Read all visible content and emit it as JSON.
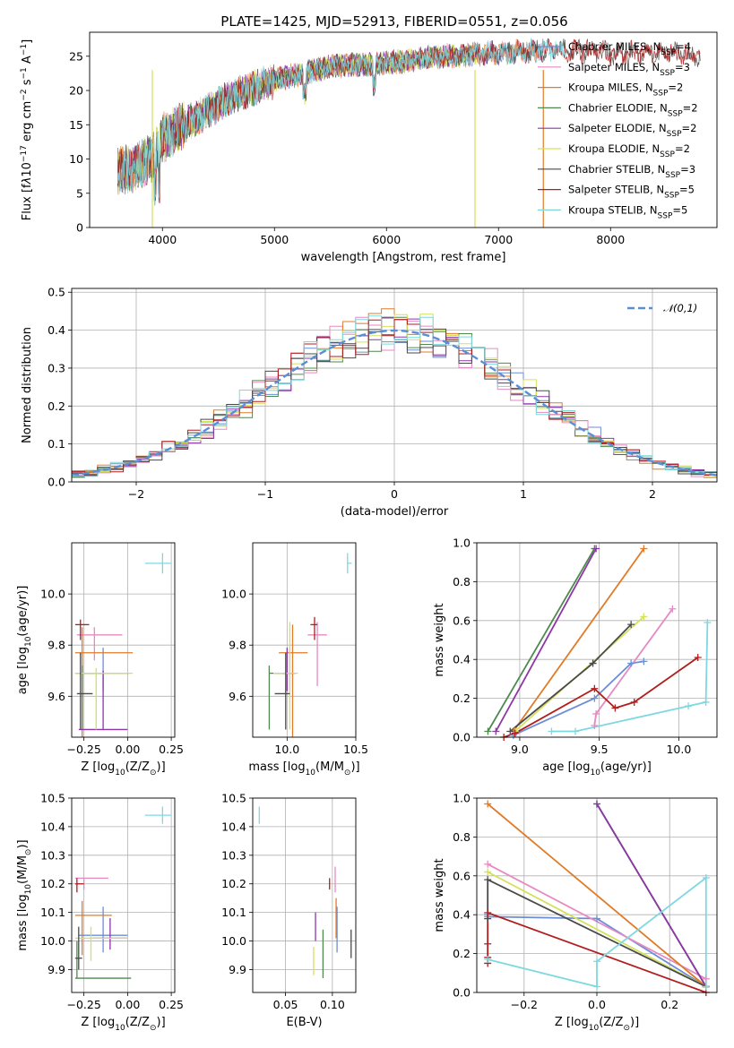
{
  "figure_title": "PLATE=1425, MJD=52913, FIBERID=0551, z=0.056",
  "chart_data": [
    {
      "id": "spectrum",
      "type": "line",
      "xlabel": "wavelength [Angstrom, rest frame]",
      "ylabel_parts": [
        "Flux [f",
        "λ",
        "10",
        "−17",
        " erg cm",
        "−2",
        " s",
        "−1",
        " A",
        "−1",
        "]"
      ],
      "xlim": [
        3350,
        8950
      ],
      "ylim": [
        0,
        28.5
      ],
      "xticks": [
        4000,
        5000,
        6000,
        7000,
        8000
      ],
      "yticks": [
        0,
        5,
        10,
        15,
        20,
        25
      ],
      "grid": false,
      "legend_position": "right",
      "continuum_x": [
        3600,
        3700,
        3900,
        4000,
        4300,
        4600,
        5000,
        5500,
        6000,
        6500,
        7000,
        7500,
        8000,
        8500,
        8800
      ],
      "continuum_y": [
        8,
        8.5,
        10,
        13,
        16,
        19,
        21.5,
        23.5,
        24,
        25,
        25.5,
        26,
        25.5,
        25.5,
        25
      ],
      "series": [
        {
          "legend_parts": [
            "Chabrier MILES, N",
            "SSP",
            "=4"
          ],
          "color": "#6b8ed6",
          "xmax": 7400
        },
        {
          "legend_parts": [
            "Salpeter MILES, N",
            "SSP",
            "=3"
          ],
          "color": "#e68ac3",
          "xmax": 7400
        },
        {
          "legend_parts": [
            "Kroupa MILES, N",
            "SSP",
            "=2"
          ],
          "color": "#e07b28",
          "xmax": 7400
        },
        {
          "legend_parts": [
            "Chabrier ELODIE, N",
            "SSP",
            "=2"
          ],
          "color": "#4f8a4f",
          "xmax": 6800
        },
        {
          "legend_parts": [
            "Salpeter ELODIE, N",
            "SSP",
            "=2"
          ],
          "color": "#8e35a8",
          "xmax": 6800
        },
        {
          "legend_parts": [
            "Kroupa ELODIE, N",
            "SSP",
            "=2"
          ],
          "color": "#d4e15a",
          "xmax": 6800
        },
        {
          "legend_parts": [
            "Chabrier STELIB, N",
            "SSP",
            "=3"
          ],
          "color": "#4a4a4a",
          "xmax": 8800
        },
        {
          "legend_parts": [
            "Salpeter STELIB, N",
            "SSP",
            "=5"
          ],
          "color": "#b01e1e",
          "xmax": 8800
        },
        {
          "legend_parts": [
            "Kroupa STELIB, N",
            "SSP",
            "=5"
          ],
          "color": "#7dd8e0",
          "xmax": 7600
        }
      ]
    },
    {
      "id": "residuals",
      "type": "histogram",
      "xlabel": "(data-model)/error",
      "ylabel": "Normed distribution",
      "xlim": [
        -2.5,
        2.5
      ],
      "ylim": [
        0,
        0.51
      ],
      "xticks": [
        -2,
        -1,
        0,
        1,
        2
      ],
      "xticklabels": [
        "−2",
        "−1",
        "0",
        "1",
        "2"
      ],
      "yticks": [
        0.0,
        0.1,
        0.2,
        0.3,
        0.4,
        0.5
      ],
      "yticklabels": [
        "0.0",
        "0.1",
        "0.2",
        "0.3",
        "0.4",
        "0.5"
      ],
      "grid": true,
      "bin_width": 0.1,
      "legend_label": "𝒩(0,1)",
      "legend_position": "top-right",
      "normal_curve_color": "#5a8fd6",
      "hist_colors": [
        "#6b8ed6",
        "#e68ac3",
        "#e07b28",
        "#4f8a4f",
        "#8e35a8",
        "#d4e15a",
        "#4a4a4a",
        "#b01e1e",
        "#7dd8e0"
      ]
    },
    {
      "id": "age_vs_Z",
      "type": "errorbar",
      "xlabel_parts": [
        "Z [log",
        "10",
        "(Z/Z",
        "⊙",
        ")]"
      ],
      "ylabel_parts": [
        "age  [log",
        "10",
        "(age/yr)]"
      ],
      "xlim": [
        -0.32,
        0.27
      ],
      "ylim": [
        9.44,
        10.2
      ],
      "xticks": [
        -0.25,
        0.0,
        0.25
      ],
      "xticklabels": [
        "−0.25",
        "0.00",
        "0.25"
      ],
      "yticks": [
        9.6,
        9.8,
        10.0
      ],
      "yticklabels": [
        "9.6",
        "9.8",
        "10.0"
      ],
      "grid": true,
      "points": [
        {
          "color": "#6b8ed6",
          "x": -0.14,
          "xerr": [
            0.14,
            0.0
          ],
          "y": 9.69,
          "yerr": [
            0.07,
            0.1
          ]
        },
        {
          "color": "#e68ac3",
          "x": -0.19,
          "xerr": [
            0.1,
            0.16
          ],
          "y": 9.84,
          "yerr": [
            0.1,
            0.03
          ]
        },
        {
          "color": "#e07b28",
          "x": -0.26,
          "xerr": [
            0.04,
            0.29
          ],
          "y": 9.77,
          "yerr": [
            0.33,
            0.1
          ]
        },
        {
          "color": "#4f8a4f",
          "x": -0.26,
          "xerr": [
            0.04,
            0.27
          ],
          "y": 9.69,
          "yerr": [
            0.22,
            0.03
          ]
        },
        {
          "color": "#8e35a8",
          "x": -0.14,
          "xerr": [
            0.14,
            0.14
          ],
          "y": 9.47,
          "yerr": [
            0.0,
            0.23
          ]
        },
        {
          "color": "#d4e15a",
          "x": -0.18,
          "xerr": [
            0.12,
            0.21
          ],
          "y": 9.69,
          "yerr": [
            0.22,
            0.02
          ]
        },
        {
          "color": "#4a4a4a",
          "x": -0.27,
          "xerr": [
            0.02,
            0.07
          ],
          "y": 9.61,
          "yerr": [
            0.14,
            0.16
          ]
        },
        {
          "color": "#b01e1e",
          "x": -0.27,
          "xerr": [
            0.03,
            0.05
          ],
          "y": 9.88,
          "yerr": [
            0.06,
            0.02
          ]
        },
        {
          "color": "#7dd8e0",
          "x": 0.2,
          "xerr": [
            0.1,
            0.05
          ],
          "y": 10.12,
          "yerr": [
            0.04,
            0.04
          ]
        }
      ]
    },
    {
      "id": "age_vs_mass",
      "type": "errorbar",
      "xlabel_parts": [
        "mass [log",
        "10",
        "(M/M",
        "⊙",
        ")]"
      ],
      "xlim": [
        9.75,
        10.5
      ],
      "ylim": [
        9.44,
        10.2
      ],
      "xticks": [
        10.0,
        10.5
      ],
      "xticklabels": [
        "10.0",
        "10.5"
      ],
      "yticks": [
        9.6,
        9.8,
        10.0
      ],
      "yticklabels": [
        "9.6",
        "9.8",
        "10.0"
      ],
      "grid": true,
      "points": [
        {
          "color": "#6b8ed6",
          "x": 10.02,
          "xerr": [
            0.1,
            0.04
          ],
          "y": 9.69,
          "yerr": [
            0.07,
            0.1
          ]
        },
        {
          "color": "#e68ac3",
          "x": 10.22,
          "xerr": [
            0.07,
            0.07
          ],
          "y": 9.84,
          "yerr": [
            0.2,
            0.05
          ]
        },
        {
          "color": "#e07b28",
          "x": 10.04,
          "xerr": [
            0.1,
            0.11
          ],
          "y": 9.77,
          "yerr": [
            0.33,
            0.11
          ]
        },
        {
          "color": "#4f8a4f",
          "x": 9.87,
          "xerr": [
            0.0,
            0.12
          ],
          "y": 9.69,
          "yerr": [
            0.22,
            0.03
          ]
        },
        {
          "color": "#8e35a8",
          "x": 10.0,
          "xerr": [
            0.03,
            0.06
          ],
          "y": 9.69,
          "yerr": [
            0.07,
            0.1
          ]
        },
        {
          "color": "#d4e15a",
          "x": 10.02,
          "xerr": [
            0.12,
            0.06
          ],
          "y": 9.69,
          "yerr": [
            0.22,
            0.2
          ]
        },
        {
          "color": "#4a4a4a",
          "x": 9.99,
          "xerr": [
            0.08,
            0.03
          ],
          "y": 9.61,
          "yerr": [
            0.14,
            0.16
          ]
        },
        {
          "color": "#b01e1e",
          "x": 10.2,
          "xerr": [
            0.03,
            0.02
          ],
          "y": 9.88,
          "yerr": [
            0.06,
            0.03
          ]
        },
        {
          "color": "#7dd8e0",
          "x": 10.44,
          "xerr": [
            0.0,
            0.03
          ],
          "y": 10.12,
          "yerr": [
            0.04,
            0.04
          ]
        }
      ]
    },
    {
      "id": "massweight_vs_age",
      "type": "line",
      "xlabel_parts": [
        "age  [log",
        "10",
        "(age/yr)]"
      ],
      "ylabel": "mass weight",
      "xlim": [
        8.73,
        10.24
      ],
      "ylim": [
        0,
        1.0
      ],
      "xticks": [
        9.0,
        9.5,
        10.0
      ],
      "xticklabels": [
        "9.0",
        "9.5",
        "10.0"
      ],
      "yticks": [
        0.0,
        0.2,
        0.4,
        0.6,
        0.8,
        1.0
      ],
      "yticklabels": [
        "0.0",
        "0.2",
        "0.4",
        "0.6",
        "0.8",
        "1.0"
      ],
      "grid": true,
      "series": [
        {
          "color": "#6b8ed6",
          "x": [
            8.96,
            9.47,
            9.7,
            9.78
          ],
          "y": [
            0.01,
            0.2,
            0.38,
            0.39
          ]
        },
        {
          "color": "#e68ac3",
          "x": [
            9.47,
            9.48,
            9.96
          ],
          "y": [
            0.06,
            0.12,
            0.66
          ]
        },
        {
          "color": "#e07b28",
          "x": [
            8.96,
            9.78
          ],
          "y": [
            0.03,
            0.97
          ]
        },
        {
          "color": "#4f8a4f",
          "x": [
            8.8,
            9.47
          ],
          "y": [
            0.03,
            0.97
          ]
        },
        {
          "color": "#8e35a8",
          "x": [
            8.85,
            9.48
          ],
          "y": [
            0.03,
            0.97
          ]
        },
        {
          "color": "#d4e15a",
          "x": [
            8.97,
            9.78
          ],
          "y": [
            0.03,
            0.62
          ]
        },
        {
          "color": "#4a4a4a",
          "x": [
            8.94,
            9.46,
            9.7
          ],
          "y": [
            0.03,
            0.38,
            0.58
          ]
        },
        {
          "color": "#b01e1e",
          "x": [
            8.9,
            8.97,
            9.47,
            9.6,
            9.72,
            10.12
          ],
          "y": [
            0.0,
            0.02,
            0.25,
            0.15,
            0.18,
            0.41
          ]
        },
        {
          "color": "#7dd8e0",
          "x": [
            9.2,
            9.35,
            10.06,
            10.17,
            10.18
          ],
          "y": [
            0.03,
            0.03,
            0.16,
            0.18,
            0.59
          ]
        }
      ]
    },
    {
      "id": "mass_vs_Z",
      "type": "errorbar",
      "xlabel_parts": [
        "Z [log",
        "10",
        "(Z/Z",
        "⊙",
        ")]"
      ],
      "ylabel_parts": [
        "mass [log",
        "10",
        "(M/M",
        "⊙",
        ")]"
      ],
      "xlim": [
        -0.32,
        0.27
      ],
      "ylim": [
        9.82,
        10.5
      ],
      "xticks": [
        -0.25,
        0.0,
        0.25
      ],
      "xticklabels": [
        "−0.25",
        "0.00",
        "0.25"
      ],
      "yticks": [
        9.9,
        10.0,
        10.1,
        10.2,
        10.3,
        10.4,
        10.5
      ],
      "yticklabels": [
        "9.9",
        "10.0",
        "10.1",
        "10.2",
        "10.3",
        "10.4",
        "10.5"
      ],
      "grid": true,
      "points": [
        {
          "color": "#6b8ed6",
          "x": -0.14,
          "xerr": [
            0.14,
            0.14
          ],
          "y": 10.02,
          "yerr": [
            0.06,
            0.1
          ]
        },
        {
          "color": "#e68ac3",
          "x": -0.25,
          "xerr": [
            0.05,
            0.14
          ],
          "y": 10.22,
          "yerr": [
            0.04,
            0.0
          ]
        },
        {
          "color": "#e07b28",
          "x": -0.26,
          "xerr": [
            0.04,
            0.17
          ],
          "y": 10.09,
          "yerr": [
            0.14,
            0.05
          ]
        },
        {
          "color": "#4f8a4f",
          "x": -0.29,
          "xerr": [
            0.01,
            0.31
          ],
          "y": 9.87,
          "yerr": [
            0.0,
            0.13
          ]
        },
        {
          "color": "#8e35a8",
          "x": -0.1,
          "xerr": [
            0.1,
            0.1
          ],
          "y": 10.01,
          "yerr": [
            0.04,
            0.07
          ]
        },
        {
          "color": "#d4e15a",
          "x": -0.21,
          "xerr": [
            0.09,
            0.21
          ],
          "y": 10.01,
          "yerr": [
            0.08,
            0.04
          ]
        },
        {
          "color": "#4a4a4a",
          "x": -0.28,
          "xerr": [
            0.02,
            0.02
          ],
          "y": 9.94,
          "yerr": [
            0.04,
            0.11
          ]
        },
        {
          "color": "#b01e1e",
          "x": -0.29,
          "xerr": [
            0.01,
            0.04
          ],
          "y": 10.2,
          "yerr": [
            0.03,
            0.02
          ]
        },
        {
          "color": "#7dd8e0",
          "x": 0.2,
          "xerr": [
            0.1,
            0.05
          ],
          "y": 10.44,
          "yerr": [
            0.03,
            0.03
          ]
        }
      ]
    },
    {
      "id": "mass_vs_EBV",
      "type": "errorbar",
      "xlabel": "E(B-V)",
      "xlim": [
        0.015,
        0.125
      ],
      "ylim": [
        9.82,
        10.5
      ],
      "xticks": [
        0.05,
        0.1
      ],
      "xticklabels": [
        "0.05",
        "0.10"
      ],
      "yticks": [
        9.9,
        10.0,
        10.1,
        10.2,
        10.3,
        10.4,
        10.5
      ],
      "yticklabels": [
        "9.9",
        "10.0",
        "10.1",
        "10.2",
        "10.3",
        "10.4",
        "10.5"
      ],
      "grid": true,
      "points": [
        {
          "color": "#6b8ed6",
          "x": 0.105,
          "y": 10.02,
          "yerr": [
            0.06,
            0.1
          ]
        },
        {
          "color": "#e68ac3",
          "x": 0.103,
          "y": 10.22,
          "yerr": [
            0.05,
            0.04
          ]
        },
        {
          "color": "#e07b28",
          "x": 0.104,
          "y": 10.09,
          "yerr": [
            0.08,
            0.06
          ]
        },
        {
          "color": "#4f8a4f",
          "x": 0.09,
          "y": 9.99,
          "yerr": [
            0.12,
            0.05
          ]
        },
        {
          "color": "#8e35a8",
          "x": 0.082,
          "y": 10.04,
          "yerr": [
            0.04,
            0.06
          ]
        },
        {
          "color": "#d4e15a",
          "x": 0.08,
          "y": 9.95,
          "yerr": [
            0.07,
            0.03
          ]
        },
        {
          "color": "#4a4a4a",
          "x": 0.12,
          "y": 9.98,
          "yerr": [
            0.04,
            0.06
          ]
        },
        {
          "color": "#b01e1e",
          "x": 0.097,
          "y": 10.2,
          "yerr": [
            0.02,
            0.02
          ]
        },
        {
          "color": "#7dd8e0",
          "x": 0.022,
          "y": 10.44,
          "yerr": [
            0.03,
            0.03
          ]
        }
      ]
    },
    {
      "id": "massweight_vs_Z",
      "type": "line",
      "xlabel_parts": [
        "Z [log",
        "10",
        "(Z/Z",
        "⊙",
        ")]"
      ],
      "ylabel": "mass weight",
      "xlim": [
        -0.33,
        0.33
      ],
      "ylim": [
        0,
        1.0
      ],
      "xticks": [
        -0.2,
        0.0,
        0.2
      ],
      "xticklabels": [
        "−0.2",
        "0.0",
        "0.2"
      ],
      "yticks": [
        0.0,
        0.2,
        0.4,
        0.6,
        0.8,
        1.0
      ],
      "yticklabels": [
        "0.0",
        "0.2",
        "0.4",
        "0.6",
        "0.8",
        "1.0"
      ],
      "grid": true,
      "series": [
        {
          "color": "#6b8ed6",
          "x": [
            -0.3,
            -0.3,
            0.0,
            0.3
          ],
          "y": [
            0.4,
            0.39,
            0.38,
            0.03
          ]
        },
        {
          "color": "#e68ac3",
          "x": [
            -0.3,
            0.3
          ],
          "y": [
            0.66,
            0.07
          ]
        },
        {
          "color": "#e07b28",
          "x": [
            -0.3,
            0.3
          ],
          "y": [
            0.97,
            0.03
          ]
        },
        {
          "color": "#4f8a4f",
          "x": [
            0.0,
            0.3
          ],
          "y": [
            0.97,
            0.03
          ]
        },
        {
          "color": "#8e35a8",
          "x": [
            0.0,
            0.3
          ],
          "y": [
            0.97,
            0.03
          ]
        },
        {
          "color": "#d4e15a",
          "x": [
            -0.3,
            0.3
          ],
          "y": [
            0.62,
            0.03
          ]
        },
        {
          "color": "#4a4a4a",
          "x": [
            -0.3,
            -0.3,
            0.3
          ],
          "y": [
            0.38,
            0.58,
            0.03
          ]
        },
        {
          "color": "#b01e1e",
          "x": [
            -0.3,
            -0.3,
            -0.3,
            -0.3,
            0.3
          ],
          "y": [
            0.15,
            0.18,
            0.25,
            0.41,
            0.0
          ]
        },
        {
          "color": "#7dd8e0",
          "x": [
            -0.3,
            0.0,
            0.0,
            0.3,
            0.3
          ],
          "y": [
            0.17,
            0.03,
            0.16,
            0.59,
            0.03
          ]
        }
      ]
    }
  ]
}
